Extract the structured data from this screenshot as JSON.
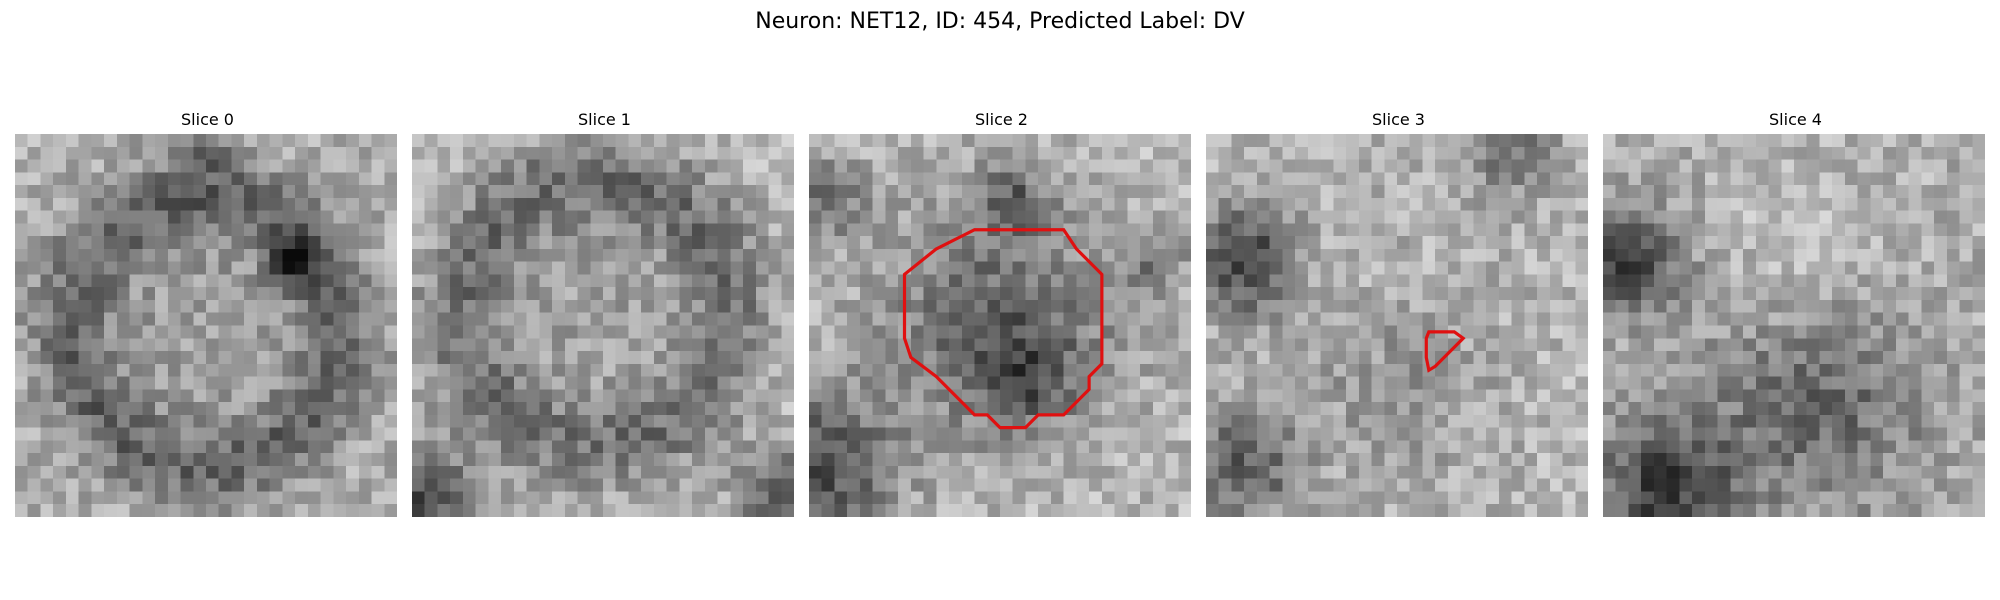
{
  "figure": {
    "title": "Neuron: NET12, ID: 454, Predicted Label: DV"
  },
  "slices": [
    {
      "title": "Slice 0",
      "contour": []
    },
    {
      "title": "Slice 1",
      "contour": []
    },
    {
      "title": "Slice 2",
      "contour": "large-polygon"
    },
    {
      "title": "Slice 3",
      "contour": "small-polygon"
    },
    {
      "title": "Slice 4",
      "contour": []
    }
  ],
  "colors": {
    "contour": "#e01010"
  }
}
